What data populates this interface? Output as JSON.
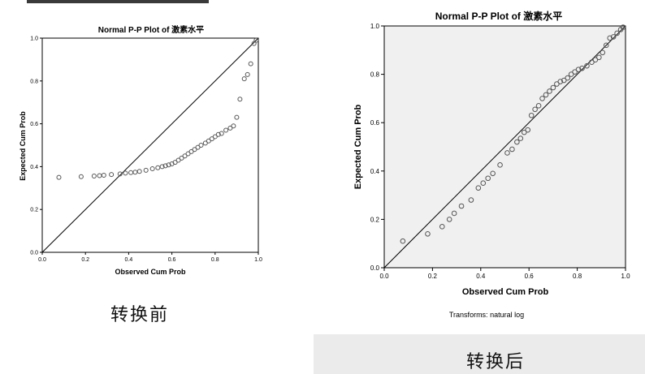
{
  "captions": {
    "left": "转换前",
    "right": "转换后"
  },
  "chart_data": [
    {
      "type": "scatter",
      "title": "Normal P-P Plot of 激素水平",
      "xlabel": "Observed Cum Prob",
      "ylabel": "Expected Cum Prob",
      "xlim": [
        0,
        1
      ],
      "ylim": [
        0,
        1
      ],
      "xticks": [
        "0.0",
        "0.2",
        "0.4",
        "0.6",
        "0.8",
        "1.0"
      ],
      "yticks": [
        "0.0",
        "0.2",
        "0.4",
        "0.6",
        "0.8",
        "1.0"
      ],
      "reference_line": true,
      "grid": false,
      "colors": {
        "plot_bg": "#ffffff",
        "points": "#555555",
        "line": "#000000"
      },
      "points": [
        [
          0.077,
          0.35
        ],
        [
          0.18,
          0.353
        ],
        [
          0.24,
          0.356
        ],
        [
          0.265,
          0.358
        ],
        [
          0.285,
          0.36
        ],
        [
          0.32,
          0.363
        ],
        [
          0.36,
          0.366
        ],
        [
          0.385,
          0.37
        ],
        [
          0.41,
          0.372
        ],
        [
          0.43,
          0.374
        ],
        [
          0.45,
          0.378
        ],
        [
          0.48,
          0.383
        ],
        [
          0.51,
          0.39
        ],
        [
          0.535,
          0.395
        ],
        [
          0.555,
          0.4
        ],
        [
          0.57,
          0.404
        ],
        [
          0.585,
          0.408
        ],
        [
          0.6,
          0.413
        ],
        [
          0.615,
          0.42
        ],
        [
          0.63,
          0.43
        ],
        [
          0.645,
          0.44
        ],
        [
          0.66,
          0.45
        ],
        [
          0.675,
          0.46
        ],
        [
          0.69,
          0.47
        ],
        [
          0.705,
          0.48
        ],
        [
          0.72,
          0.49
        ],
        [
          0.735,
          0.5
        ],
        [
          0.755,
          0.51
        ],
        [
          0.77,
          0.52
        ],
        [
          0.785,
          0.53
        ],
        [
          0.8,
          0.54
        ],
        [
          0.815,
          0.55
        ],
        [
          0.83,
          0.555
        ],
        [
          0.85,
          0.57
        ],
        [
          0.87,
          0.58
        ],
        [
          0.885,
          0.59
        ],
        [
          0.9,
          0.63
        ],
        [
          0.915,
          0.715
        ],
        [
          0.935,
          0.81
        ],
        [
          0.95,
          0.83
        ],
        [
          0.965,
          0.88
        ],
        [
          0.98,
          0.975
        ],
        [
          0.99,
          0.99
        ]
      ]
    },
    {
      "type": "scatter",
      "title": "Normal P-P Plot of 激素水平",
      "xlabel": "Observed Cum Prob",
      "ylabel": "Expected Cum Prob",
      "xlim": [
        0,
        1
      ],
      "ylim": [
        0,
        1
      ],
      "xticks": [
        "0.0",
        "0.2",
        "0.4",
        "0.6",
        "0.8",
        "1.0"
      ],
      "yticks": [
        "0.0",
        "0.2",
        "0.4",
        "0.6",
        "0.8",
        "1.0"
      ],
      "reference_line": true,
      "grid": false,
      "note": "Transforms: natural log",
      "colors": {
        "plot_bg": "#f0f0f0",
        "points": "#555555",
        "line": "#000000"
      },
      "points": [
        [
          0.077,
          0.11
        ],
        [
          0.18,
          0.14
        ],
        [
          0.24,
          0.17
        ],
        [
          0.27,
          0.2
        ],
        [
          0.29,
          0.225
        ],
        [
          0.32,
          0.255
        ],
        [
          0.36,
          0.28
        ],
        [
          0.39,
          0.33
        ],
        [
          0.41,
          0.35
        ],
        [
          0.43,
          0.37
        ],
        [
          0.45,
          0.39
        ],
        [
          0.48,
          0.425
        ],
        [
          0.51,
          0.475
        ],
        [
          0.53,
          0.49
        ],
        [
          0.55,
          0.52
        ],
        [
          0.565,
          0.535
        ],
        [
          0.58,
          0.56
        ],
        [
          0.595,
          0.57
        ],
        [
          0.61,
          0.63
        ],
        [
          0.625,
          0.655
        ],
        [
          0.64,
          0.67
        ],
        [
          0.655,
          0.7
        ],
        [
          0.67,
          0.715
        ],
        [
          0.685,
          0.73
        ],
        [
          0.7,
          0.745
        ],
        [
          0.715,
          0.76
        ],
        [
          0.73,
          0.77
        ],
        [
          0.745,
          0.775
        ],
        [
          0.76,
          0.785
        ],
        [
          0.775,
          0.8
        ],
        [
          0.79,
          0.81
        ],
        [
          0.805,
          0.82
        ],
        [
          0.82,
          0.825
        ],
        [
          0.84,
          0.835
        ],
        [
          0.86,
          0.85
        ],
        [
          0.875,
          0.86
        ],
        [
          0.89,
          0.87
        ],
        [
          0.905,
          0.89
        ],
        [
          0.92,
          0.92
        ],
        [
          0.935,
          0.95
        ],
        [
          0.95,
          0.955
        ],
        [
          0.965,
          0.97
        ],
        [
          0.98,
          0.985
        ],
        [
          0.99,
          0.995
        ]
      ]
    }
  ]
}
